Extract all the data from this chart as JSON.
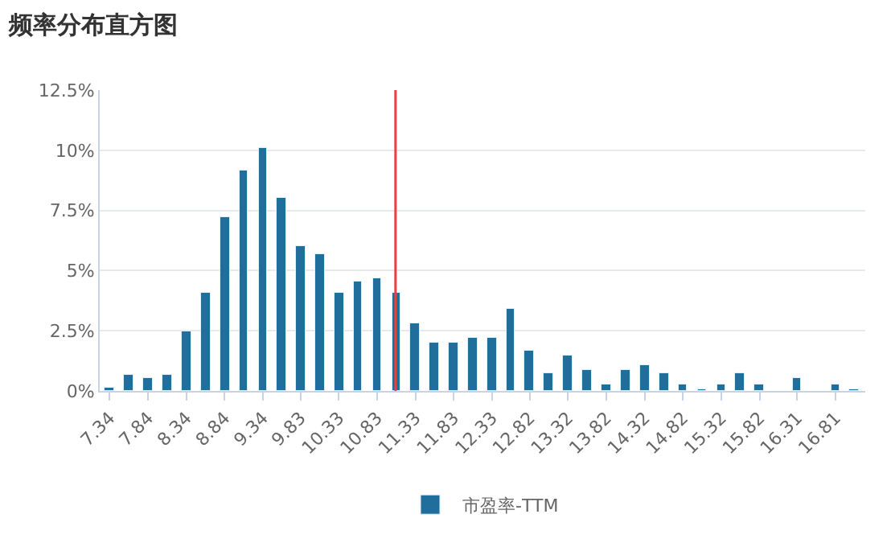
{
  "chart_data": {
    "type": "bar",
    "title": "频率分布直方图",
    "x": [
      7.34,
      7.59,
      7.84,
      8.09,
      8.34,
      8.59,
      8.84,
      9.09,
      9.34,
      9.585,
      9.83,
      10.08,
      10.33,
      10.58,
      10.83,
      11.08,
      11.33,
      11.58,
      11.83,
      12.08,
      12.33,
      12.575,
      12.82,
      13.07,
      13.32,
      13.57,
      13.82,
      14.07,
      14.32,
      14.57,
      14.82,
      15.07,
      15.32,
      15.57,
      15.82,
      16.065,
      16.31,
      16.56,
      16.81,
      17.06
    ],
    "series": [
      {
        "name": "市盈率-TTM",
        "color": "#1f6e9c",
        "values": [
          0.13,
          0.7,
          0.55,
          0.7,
          2.45,
          4.1,
          7.23,
          9.13,
          10.1,
          8.0,
          6.02,
          5.66,
          4.1,
          4.52,
          4.7,
          4.1,
          2.8,
          2.03,
          2.03,
          2.2,
          2.2,
          3.39,
          1.67,
          0.71,
          1.48,
          0.88,
          0.29,
          0.88,
          1.07,
          0.71,
          0.29,
          0.1,
          0.29,
          0.71,
          0.29,
          null,
          0.52,
          null,
          0.29,
          0.1
        ]
      }
    ],
    "xlim": [
      7.21,
      17.2
    ],
    "xticks": [
      7.34,
      7.84,
      8.34,
      8.84,
      9.34,
      9.83,
      10.33,
      10.83,
      11.33,
      11.83,
      12.33,
      12.82,
      13.32,
      13.82,
      14.32,
      14.82,
      15.32,
      15.82,
      16.31,
      16.81
    ],
    "ylim": [
      0,
      12.5
    ],
    "yticks": [
      {
        "value": 0,
        "label": "0%"
      },
      {
        "value": 2.5,
        "label": "2.5%"
      },
      {
        "value": 5,
        "label": "5%"
      },
      {
        "value": 7.5,
        "label": "7.5%"
      },
      {
        "value": 10,
        "label": "10%"
      },
      {
        "value": 12.5,
        "label": "12.5%"
      }
    ],
    "ref_lines": [
      {
        "axis": "x",
        "value": 11.07,
        "color": "#e8423f"
      }
    ],
    "grid": "y",
    "legend": "bottom"
  }
}
